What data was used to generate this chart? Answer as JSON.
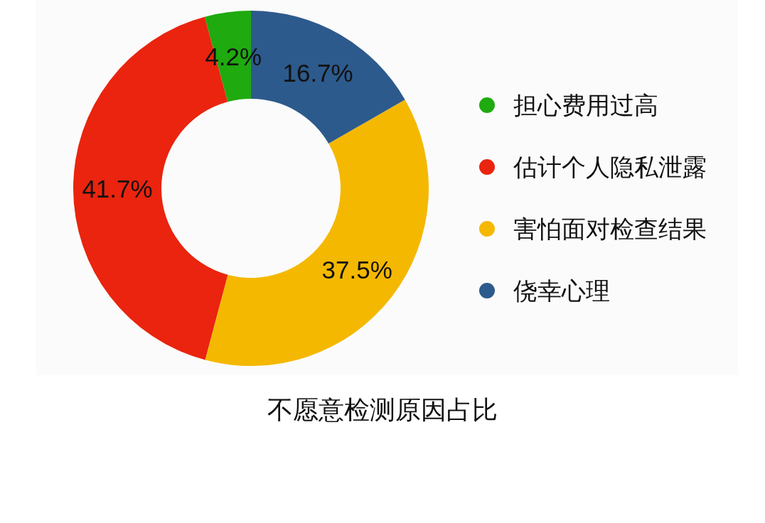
{
  "chart_data": {
    "type": "donut",
    "title": "不愿意检测原因占比",
    "categories": [
      "担心费用过高",
      "估计个人隐私泄露",
      "害怕面对检查结果",
      "侥幸心理"
    ],
    "values": [
      4.2,
      41.7,
      37.5,
      16.7
    ],
    "colors": [
      "#1faa0f",
      "#ea240e",
      "#f5b800",
      "#2d5a8c"
    ],
    "value_labels": [
      "4.2%",
      "41.7%",
      "37.5%",
      "16.7%"
    ],
    "legend": "right"
  }
}
